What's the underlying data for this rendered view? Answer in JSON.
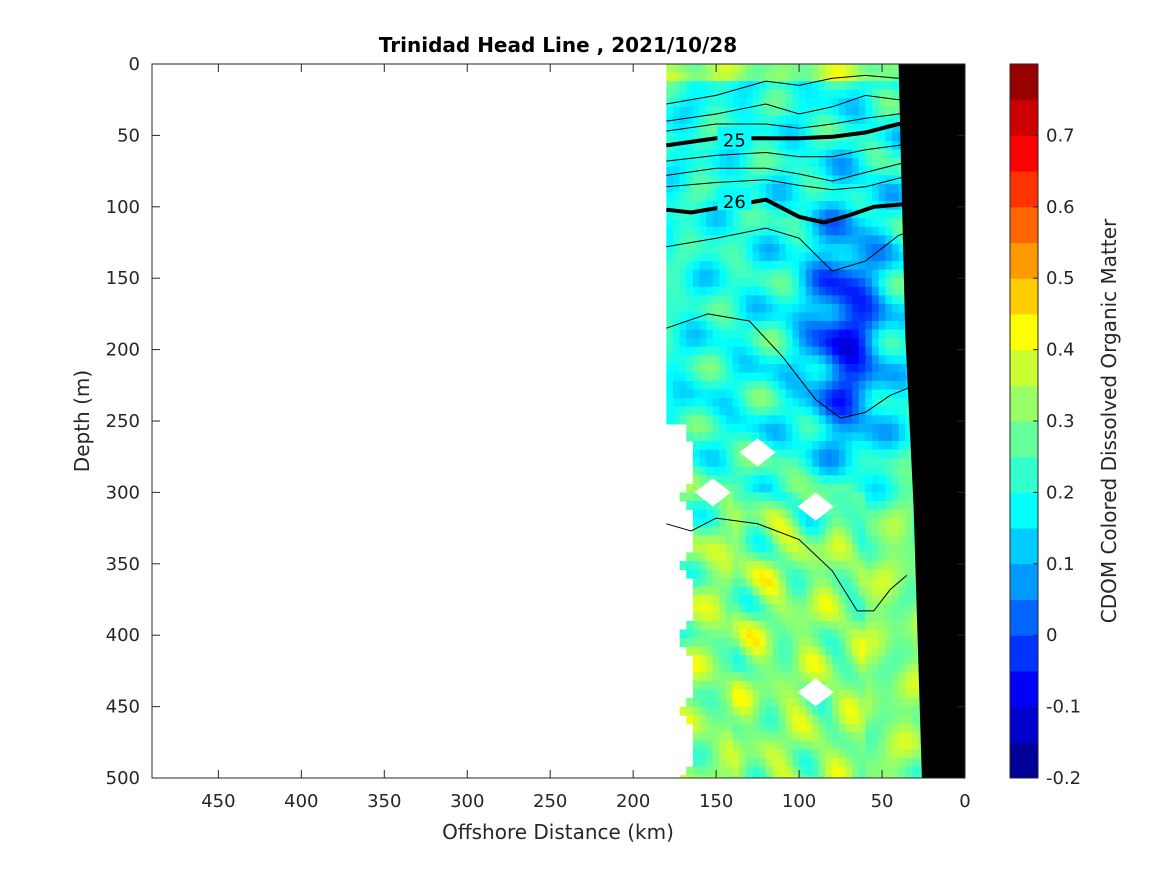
{
  "chart_data": {
    "type": "heatmap",
    "title": "Trinidad Head Line , 2021/10/28",
    "xlabel": "Offshore Distance (km)",
    "ylabel": "Depth (m)",
    "colorbar_label": "CDOM Colored Dissolved Organic Matter",
    "xlim": [
      490,
      0
    ],
    "ylim": [
      500,
      0
    ],
    "y_reversed": true,
    "x_reversed": true,
    "xticks": [
      450,
      400,
      350,
      300,
      250,
      200,
      150,
      100,
      50,
      0
    ],
    "yticks": [
      0,
      50,
      100,
      150,
      200,
      250,
      300,
      350,
      400,
      450,
      500
    ],
    "clim": [
      -0.2,
      0.8
    ],
    "cticks": [
      -0.2,
      -0.1,
      0,
      0.1,
      0.2,
      0.3,
      0.4,
      0.5,
      0.6,
      0.7
    ],
    "colormap": "jet",
    "data_extent_x": [
      180,
      0
    ],
    "contour_labels": [
      {
        "label": "25",
        "x": 139,
        "depth": 53
      },
      {
        "label": "26",
        "x": 139,
        "depth": 96
      }
    ],
    "isopycnals": {
      "thick_25": [
        [
          180,
          57
        ],
        [
          150,
          52
        ],
        [
          120,
          52
        ],
        [
          100,
          52
        ],
        [
          80,
          51
        ],
        [
          60,
          48
        ],
        [
          40,
          42
        ],
        [
          25,
          41
        ],
        [
          15,
          32
        ]
      ],
      "thick_26": [
        [
          180,
          102
        ],
        [
          165,
          104
        ],
        [
          140,
          99
        ],
        [
          120,
          95
        ],
        [
          100,
          107
        ],
        [
          85,
          111
        ],
        [
          70,
          106
        ],
        [
          55,
          100
        ],
        [
          35,
          98
        ],
        [
          15,
          94
        ]
      ],
      "thin": [
        [
          [
            180,
            28
          ],
          [
            150,
            22
          ],
          [
            120,
            12
          ],
          [
            100,
            15
          ],
          [
            80,
            10
          ],
          [
            60,
            8
          ],
          [
            40,
            10
          ],
          [
            20,
            5
          ]
        ],
        [
          [
            180,
            40
          ],
          [
            150,
            35
          ],
          [
            120,
            28
          ],
          [
            100,
            35
          ],
          [
            80,
            30
          ],
          [
            60,
            22
          ],
          [
            40,
            25
          ],
          [
            20,
            15
          ]
        ],
        [
          [
            180,
            47
          ],
          [
            150,
            42
          ],
          [
            120,
            42
          ],
          [
            100,
            45
          ],
          [
            80,
            42
          ],
          [
            60,
            38
          ],
          [
            40,
            35
          ],
          [
            20,
            28
          ]
        ],
        [
          [
            180,
            68
          ],
          [
            150,
            64
          ],
          [
            120,
            62
          ],
          [
            100,
            65
          ],
          [
            80,
            65
          ],
          [
            60,
            60
          ],
          [
            40,
            57
          ],
          [
            20,
            50
          ]
        ],
        [
          [
            180,
            78
          ],
          [
            150,
            73
          ],
          [
            120,
            73
          ],
          [
            100,
            77
          ],
          [
            80,
            82
          ],
          [
            60,
            76
          ],
          [
            40,
            70
          ],
          [
            20,
            66
          ]
        ],
        [
          [
            180,
            86
          ],
          [
            150,
            83
          ],
          [
            120,
            81
          ],
          [
            100,
            85
          ],
          [
            80,
            88
          ],
          [
            60,
            86
          ],
          [
            40,
            80
          ],
          [
            20,
            75
          ]
        ],
        [
          [
            180,
            128
          ],
          [
            150,
            122
          ],
          [
            120,
            115
          ],
          [
            100,
            122
          ],
          [
            80,
            145
          ],
          [
            60,
            138
          ],
          [
            40,
            120
          ],
          [
            20,
            112
          ]
        ],
        [
          [
            180,
            185
          ],
          [
            155,
            175
          ],
          [
            130,
            180
          ],
          [
            110,
            205
          ],
          [
            90,
            235
          ],
          [
            75,
            248
          ],
          [
            60,
            244
          ],
          [
            45,
            232
          ],
          [
            30,
            225
          ]
        ],
        [
          [
            180,
            322
          ],
          [
            165,
            327
          ],
          [
            150,
            318
          ],
          [
            125,
            322
          ],
          [
            100,
            333
          ],
          [
            80,
            355
          ],
          [
            65,
            383
          ],
          [
            55,
            383
          ],
          [
            45,
            368
          ],
          [
            35,
            358
          ]
        ]
      ]
    },
    "no_data_patches": [
      {
        "x": 125,
        "depth": 272
      },
      {
        "x": 152,
        "depth": 300
      },
      {
        "x": 90,
        "depth": 310
      },
      {
        "x": 90,
        "depth": 440
      }
    ],
    "seafloor_polygon": [
      [
        0,
        0
      ],
      [
        0,
        500
      ],
      [
        26,
        500
      ],
      [
        31,
        310
      ],
      [
        36,
        190
      ],
      [
        40,
        0
      ]
    ],
    "colors": {
      "isopycnal": "#000000",
      "seafloor": "#000000",
      "axis": "#262626"
    }
  }
}
